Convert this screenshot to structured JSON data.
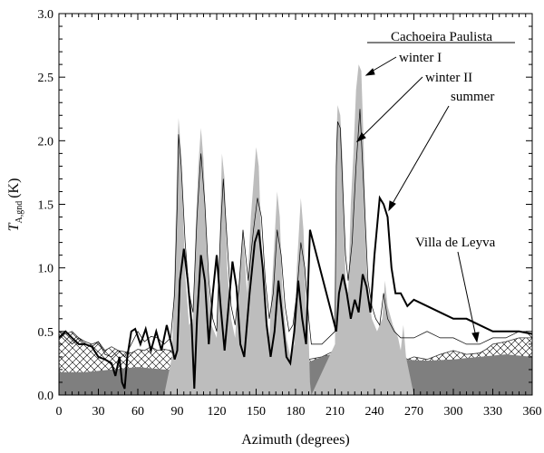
{
  "chart_data": {
    "type": "area",
    "title": "",
    "xlabel": "Azimuth (degrees)",
    "ylabel": "T_A,gnd (K)",
    "ylabel_main": "T",
    "ylabel_sub": "A,gnd",
    "ylabel_unit": "(K)",
    "xlim": [
      0,
      360
    ],
    "ylim": [
      0,
      3.0
    ],
    "xticks": [
      0,
      30,
      60,
      90,
      120,
      150,
      180,
      210,
      240,
      270,
      300,
      330,
      360
    ],
    "yticks": [
      0.0,
      0.5,
      1.0,
      1.5,
      2.0,
      2.5,
      3.0
    ],
    "ytick_labels": [
      "0.0",
      "0.5",
      "1.0",
      "1.5",
      "2.0",
      "2.5",
      "3.0"
    ],
    "grid": false,
    "legend": {
      "heading": "Cachoeira Paulista",
      "entries": [
        "winter I",
        "winter II",
        "summer"
      ],
      "extra": "Villa de Leyva"
    },
    "colors": {
      "winter_I_fill": "#bdbdbd",
      "villa_fill": "#7f7f7f",
      "summer_line": "#000000",
      "winter_II_line": "#000000"
    },
    "series": [
      {
        "name": "winter I",
        "style": "gray-filled-area",
        "x": [
          0,
          10,
          20,
          30,
          40,
          50,
          60,
          70,
          80,
          86,
          88,
          90,
          91,
          93,
          96,
          99,
          102,
          104,
          106,
          108,
          110,
          113,
          116,
          120,
          122,
          124,
          126,
          128,
          131,
          134,
          137,
          140,
          143,
          146,
          150,
          152,
          154,
          157,
          160,
          163,
          166,
          168,
          170,
          173,
          176,
          179,
          181,
          184,
          186,
          188,
          190,
          191,
          192,
          210,
          211,
          212,
          214,
          216,
          218,
          220,
          222,
          224,
          226,
          228,
          230,
          232,
          234,
          236,
          238,
          240,
          242,
          246,
          248,
          250,
          254,
          258,
          260,
          262,
          264,
          270,
          280,
          300,
          320,
          340,
          360
        ],
        "y": [
          0.0,
          0.0,
          0.0,
          0.0,
          0.0,
          0.0,
          0.0,
          0.0,
          0.0,
          0.3,
          1.0,
          1.9,
          2.18,
          1.9,
          0.95,
          0.55,
          0.6,
          1.3,
          1.8,
          2.1,
          1.85,
          1.0,
          0.55,
          0.45,
          1.1,
          1.9,
          1.7,
          1.0,
          0.6,
          0.45,
          0.9,
          1.3,
          0.8,
          1.4,
          1.95,
          1.8,
          1.2,
          0.7,
          0.45,
          1.05,
          1.6,
          1.4,
          0.8,
          0.45,
          0.3,
          0.4,
          1.0,
          1.55,
          1.3,
          0.7,
          0.45,
          0.1,
          0.0,
          0.4,
          2.0,
          2.28,
          2.2,
          1.8,
          0.9,
          0.8,
          1.5,
          1.9,
          2.4,
          2.6,
          2.55,
          1.9,
          1.0,
          0.75,
          0.6,
          0.55,
          0.5,
          0.6,
          0.9,
          0.7,
          0.55,
          0.45,
          0.35,
          0.55,
          0.3,
          0.0,
          0.0,
          0.0,
          0.0,
          0.0,
          0.0
        ]
      },
      {
        "name": "winter II",
        "style": "thin-line",
        "x": [
          0,
          5,
          10,
          15,
          20,
          25,
          30,
          35,
          40,
          45,
          50,
          55,
          60,
          65,
          70,
          75,
          80,
          85,
          88,
          90,
          91,
          93,
          96,
          99,
          102,
          105,
          108,
          111,
          114,
          117,
          120,
          123,
          125,
          128,
          131,
          134,
          137,
          140,
          144,
          148,
          151,
          154,
          157,
          160,
          163,
          166,
          169,
          172,
          175,
          178,
          181,
          184,
          187,
          190,
          192,
          200,
          210,
          211,
          212,
          214,
          216,
          218,
          220,
          223,
          226,
          229,
          232,
          235,
          238,
          241,
          244,
          247,
          250,
          255,
          260,
          270,
          280,
          290,
          300,
          310,
          320,
          330,
          340,
          350,
          355,
          360
        ],
        "y": [
          0.5,
          0.45,
          0.4,
          0.45,
          0.4,
          0.38,
          0.42,
          0.32,
          0.3,
          0.35,
          0.3,
          0.4,
          0.5,
          0.42,
          0.46,
          0.45,
          0.4,
          0.45,
          0.8,
          1.5,
          2.05,
          1.8,
          1.2,
          0.8,
          0.65,
          1.4,
          1.9,
          1.5,
          0.9,
          0.6,
          0.5,
          1.3,
          1.7,
          1.2,
          0.7,
          0.55,
          0.85,
          1.3,
          0.9,
          1.3,
          1.55,
          1.4,
          0.9,
          0.6,
          0.8,
          1.3,
          1.1,
          0.7,
          0.5,
          0.55,
          0.8,
          1.2,
          1.0,
          0.6,
          0.4,
          0.4,
          0.5,
          1.8,
          2.15,
          2.1,
          1.6,
          1.1,
          0.9,
          1.2,
          1.8,
          2.25,
          1.6,
          0.9,
          0.7,
          0.6,
          0.55,
          0.8,
          0.6,
          0.5,
          0.45,
          0.45,
          0.5,
          0.45,
          0.45,
          0.4,
          0.4,
          0.45,
          0.45,
          0.5,
          0.5,
          0.45
        ]
      },
      {
        "name": "summer",
        "style": "thick-line",
        "x": [
          0,
          5,
          10,
          15,
          20,
          25,
          30,
          35,
          40,
          43,
          46,
          48,
          50,
          52,
          55,
          58,
          62,
          66,
          70,
          74,
          78,
          82,
          86,
          88,
          90,
          92,
          95,
          98,
          101,
          103,
          105,
          108,
          111,
          114,
          117,
          120,
          123,
          126,
          129,
          132,
          135,
          138,
          141,
          145,
          149,
          152,
          155,
          158,
          161,
          164,
          167,
          170,
          173,
          176,
          179,
          182,
          185,
          188,
          191,
          211,
          213,
          216,
          219,
          222,
          225,
          228,
          231,
          234,
          237,
          240,
          244,
          247,
          250,
          253,
          256,
          260,
          265,
          270,
          280,
          290,
          300,
          310,
          320,
          330,
          340,
          350,
          360
        ],
        "y": [
          0.45,
          0.5,
          0.45,
          0.4,
          0.4,
          0.38,
          0.3,
          0.28,
          0.25,
          0.15,
          0.3,
          0.1,
          0.05,
          0.3,
          0.5,
          0.52,
          0.4,
          0.52,
          0.35,
          0.5,
          0.35,
          0.55,
          0.38,
          0.28,
          0.35,
          0.9,
          1.15,
          0.9,
          0.55,
          0.05,
          0.6,
          1.1,
          0.9,
          0.4,
          0.8,
          1.1,
          0.7,
          0.35,
          0.7,
          1.05,
          0.85,
          0.4,
          0.3,
          0.8,
          1.2,
          1.3,
          1.0,
          0.55,
          0.3,
          0.5,
          0.9,
          0.6,
          0.3,
          0.25,
          0.5,
          0.9,
          0.6,
          0.4,
          1.3,
          0.5,
          0.8,
          0.95,
          0.8,
          0.6,
          0.75,
          0.65,
          0.95,
          0.85,
          0.65,
          1.1,
          1.55,
          1.5,
          1.4,
          1.0,
          0.8,
          0.8,
          0.7,
          0.75,
          0.7,
          0.65,
          0.6,
          0.6,
          0.55,
          0.5,
          0.5,
          0.5,
          0.48
        ]
      },
      {
        "name": "Villa de Leyva",
        "style": "crosshatch-area",
        "x": [
          0,
          5,
          10,
          15,
          20,
          25,
          30,
          35,
          40,
          45,
          50,
          55,
          60,
          65,
          70,
          75,
          80,
          85,
          90,
          100,
          110,
          120,
          130,
          140,
          150,
          160,
          170,
          180,
          190,
          200,
          210,
          220,
          230,
          240,
          244,
          248,
          252,
          256,
          260,
          265,
          270,
          280,
          290,
          300,
          310,
          320,
          325,
          330,
          340,
          350,
          360
        ],
        "y": [
          0.5,
          0.48,
          0.5,
          0.45,
          0.42,
          0.4,
          0.42,
          0.35,
          0.38,
          0.35,
          0.34,
          0.33,
          0.36,
          0.35,
          0.38,
          0.35,
          0.36,
          0.35,
          0.3,
          0.24,
          0.28,
          0.25,
          0.27,
          0.25,
          0.3,
          0.26,
          0.26,
          0.28,
          0.28,
          0.3,
          0.35,
          0.38,
          0.4,
          0.42,
          0.45,
          0.42,
          0.35,
          0.3,
          0.32,
          0.28,
          0.3,
          0.28,
          0.32,
          0.35,
          0.32,
          0.33,
          0.36,
          0.4,
          0.42,
          0.45,
          0.45
        ]
      },
      {
        "name": "Villa de Leyva (dark base)",
        "style": "dark-filled-area",
        "x": [
          0,
          20,
          40,
          60,
          80,
          90,
          100,
          110,
          120,
          140,
          160,
          180,
          190,
          200,
          210,
          220,
          230,
          240,
          250,
          260,
          280,
          300,
          320,
          340,
          360
        ],
        "y": [
          0.18,
          0.18,
          0.2,
          0.22,
          0.2,
          0.2,
          0.24,
          0.28,
          0.26,
          0.25,
          0.24,
          0.25,
          0.26,
          0.3,
          0.33,
          0.38,
          0.4,
          0.42,
          0.3,
          0.28,
          0.27,
          0.28,
          0.3,
          0.32,
          0.3
        ]
      }
    ]
  }
}
